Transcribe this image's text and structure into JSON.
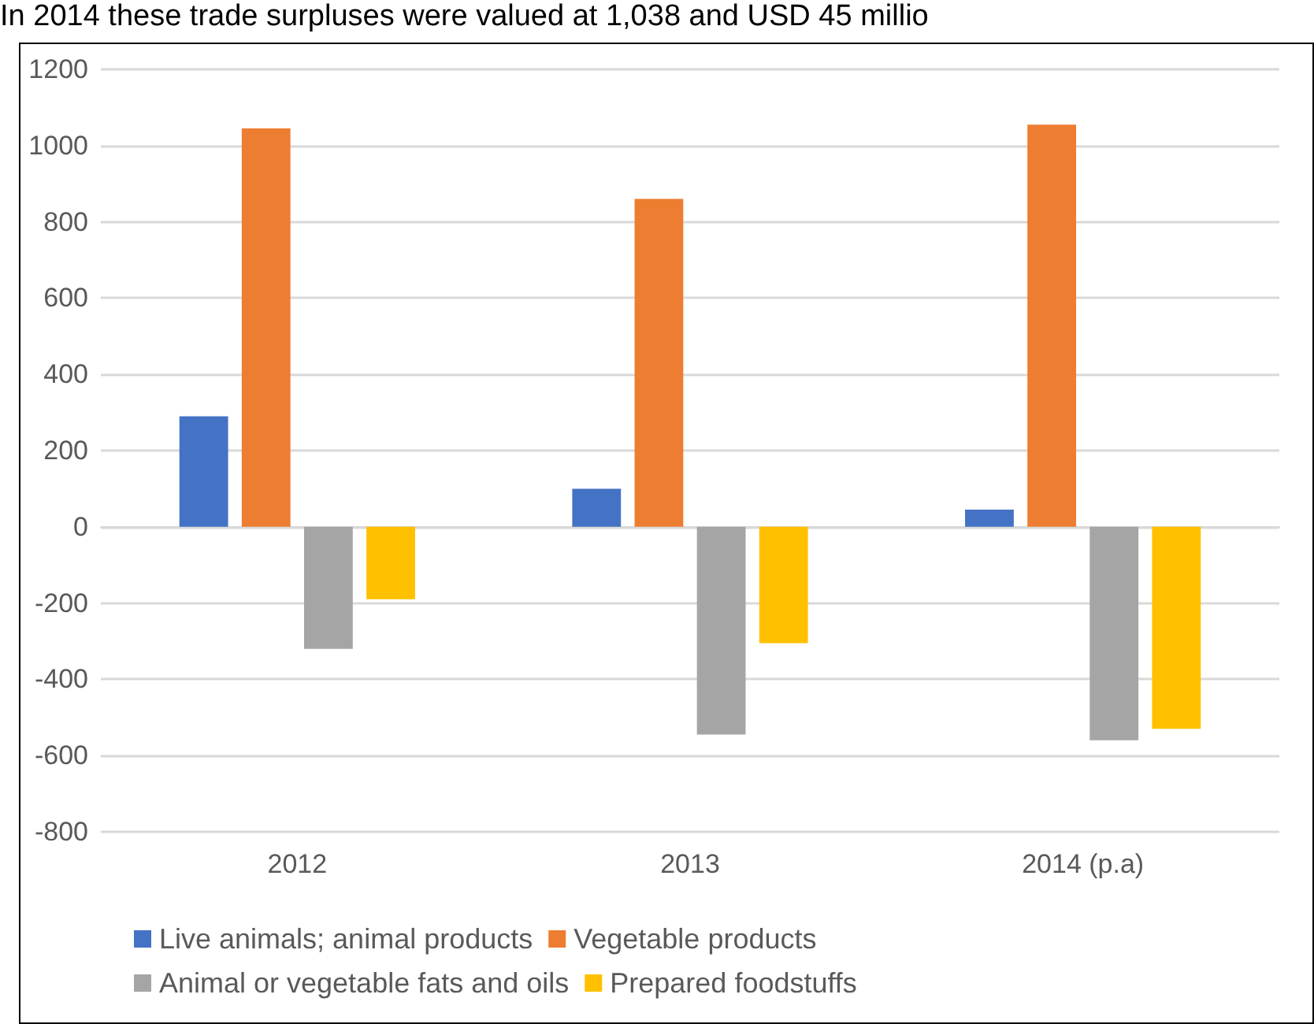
{
  "chart_data": {
    "type": "bar",
    "title": "In 2014 these trade surpluses were valued at 1,038 and USD 45 millio",
    "categories": [
      "2012",
      "2013",
      "2014 (p.a)"
    ],
    "series": [
      {
        "name": "Live animals; animal products",
        "color": "#4472c4",
        "values": [
          290,
          100,
          45
        ]
      },
      {
        "name": "Vegetable products",
        "color": "#ed7d31",
        "values": [
          1045,
          860,
          1055
        ]
      },
      {
        "name": "Animal or vegetable fats and oils",
        "color": "#a5a5a5",
        "values": [
          -320,
          -545,
          -560
        ]
      },
      {
        "name": "Prepared foodstuffs",
        "color": "#ffc000",
        "values": [
          -190,
          -305,
          -530
        ]
      }
    ],
    "ylim": [
      -800,
      1200
    ],
    "yticks": [
      -800,
      -600,
      -400,
      -200,
      0,
      200,
      400,
      600,
      800,
      1000,
      1200
    ],
    "grid": "y",
    "legend": "bottom"
  }
}
